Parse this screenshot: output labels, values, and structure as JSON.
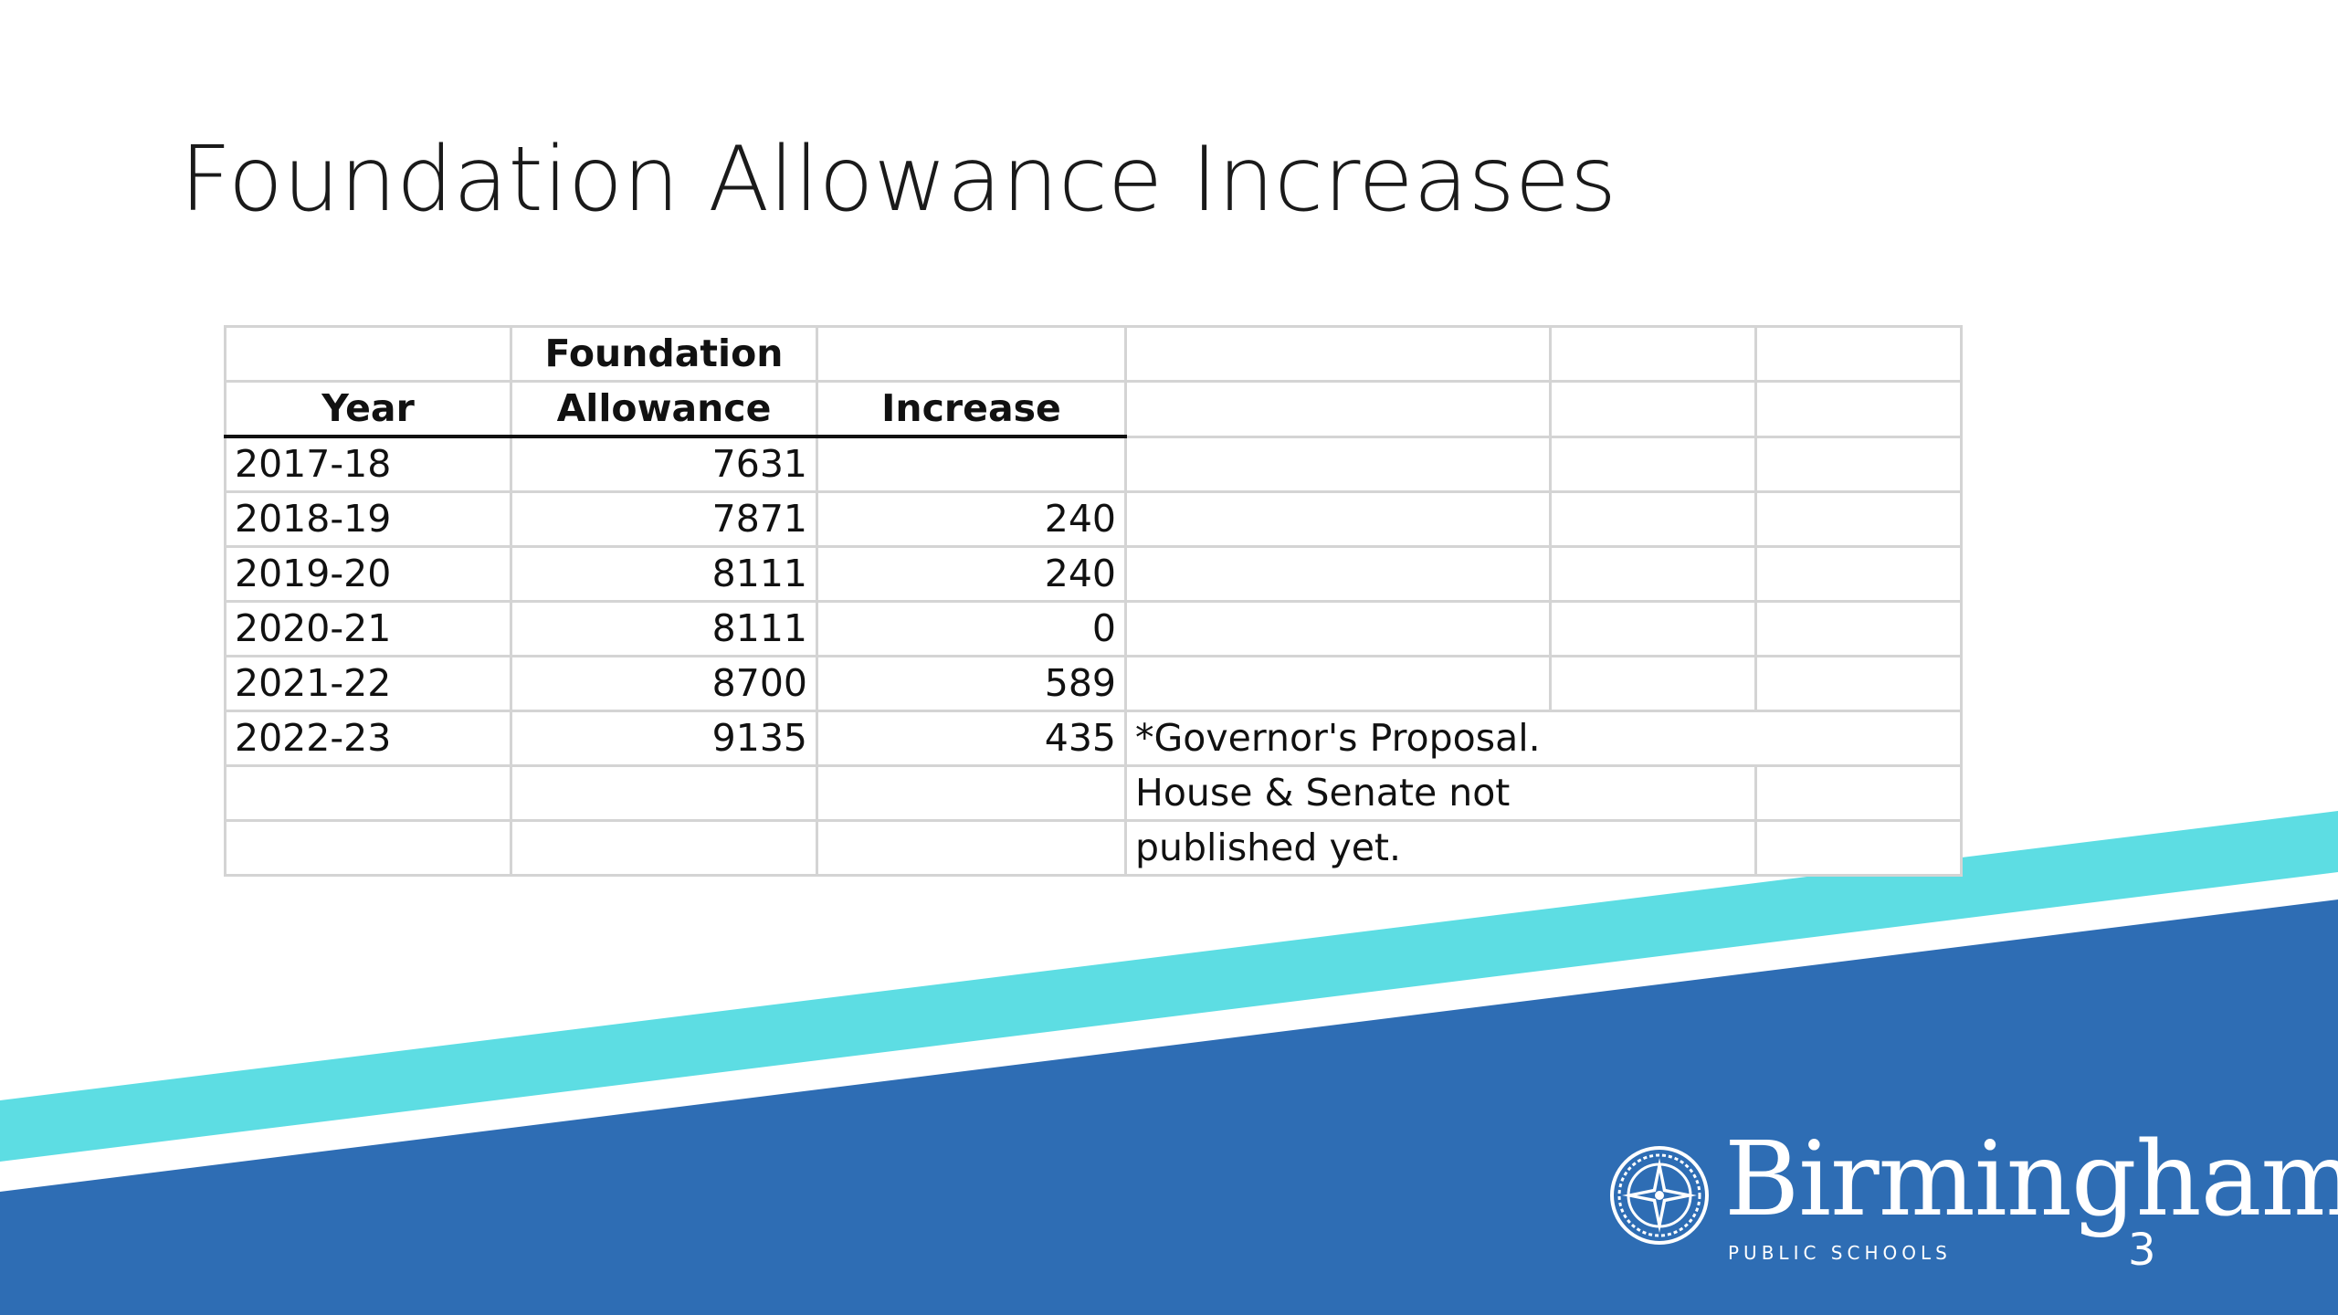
{
  "slide": {
    "title": "Foundation Allowance Increases",
    "page_number": "3"
  },
  "table": {
    "header_row1": [
      "",
      "Foundation",
      "",
      "",
      "",
      ""
    ],
    "header_row2": [
      "Year",
      "Allowance",
      "Increase",
      "",
      "",
      ""
    ],
    "rows": [
      {
        "year": "2017-18",
        "allowance": "7631",
        "increase": ""
      },
      {
        "year": "2018-19",
        "allowance": "7871",
        "increase": "240"
      },
      {
        "year": "2019-20",
        "allowance": "8111",
        "increase": "240"
      },
      {
        "year": "2020-21",
        "allowance": "8111",
        "increase": "0"
      },
      {
        "year": "2021-22",
        "allowance": "8700",
        "increase": "589"
      },
      {
        "year": "2022-23",
        "allowance": "9135",
        "increase": "435"
      }
    ],
    "note_lines": [
      "*Governor's Proposal.",
      "House & Senate not",
      "published yet."
    ]
  },
  "logo": {
    "name": "Birmingham",
    "subtitle": "PUBLIC SCHOOLS"
  },
  "colors": {
    "accent_stripe": "#5ddde3",
    "brand_blue": "#2e6db4",
    "title_text": "#1a1a1a"
  }
}
